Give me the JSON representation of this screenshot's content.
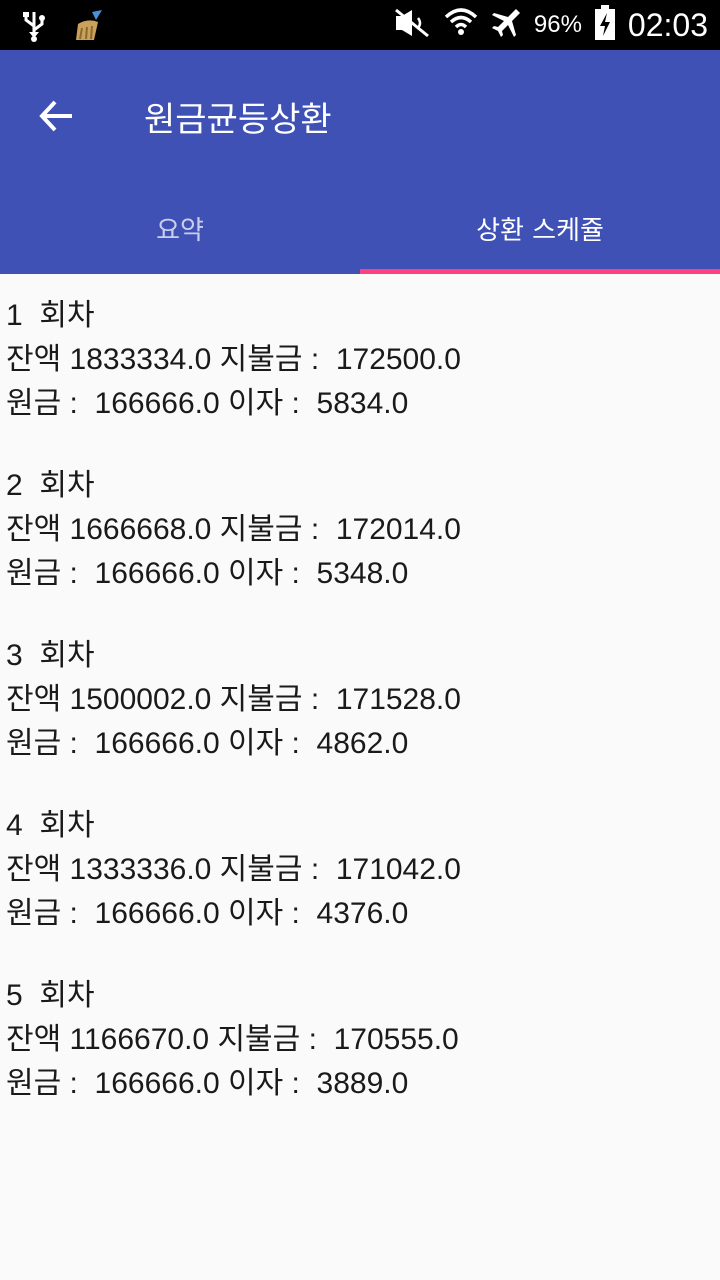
{
  "status_bar": {
    "battery": "96%",
    "time": "02:03",
    "icons": [
      "usb-icon",
      "cleaner-broom-icon",
      "mute-icon",
      "wifi-icon",
      "airplane-icon",
      "battery-charging-icon"
    ]
  },
  "app_bar": {
    "title": "원금균등상환",
    "back_icon": "arrow-left-icon"
  },
  "tabs": [
    {
      "label": "요약",
      "active": false
    },
    {
      "label": "상환 스케쥴",
      "active": true
    }
  ],
  "colors": {
    "primary": "#3f51b5",
    "accent": "#ff4081",
    "status_bar": "#000000",
    "background": "#fafafa"
  },
  "schedule": [
    {
      "round": "1  회차",
      "balance_line": "잔액 1833334.0 지불금 :  172500.0",
      "detail_line": "원금 :  166666.0 이자 :  5834.0"
    },
    {
      "round": "2  회차",
      "balance_line": "잔액 1666668.0 지불금 :  172014.0",
      "detail_line": "원금 :  166666.0 이자 :  5348.0"
    },
    {
      "round": "3  회차",
      "balance_line": "잔액 1500002.0 지불금 :  171528.0",
      "detail_line": "원금 :  166666.0 이자 :  4862.0"
    },
    {
      "round": "4  회차",
      "balance_line": "잔액 1333336.0 지불금 :  171042.0",
      "detail_line": "원금 :  166666.0 이자 :  4376.0"
    },
    {
      "round": "5  회차",
      "balance_line": "잔액 1166670.0 지불금 :  170555.0",
      "detail_line": "원금 :  166666.0 이자 :  3889.0"
    }
  ]
}
